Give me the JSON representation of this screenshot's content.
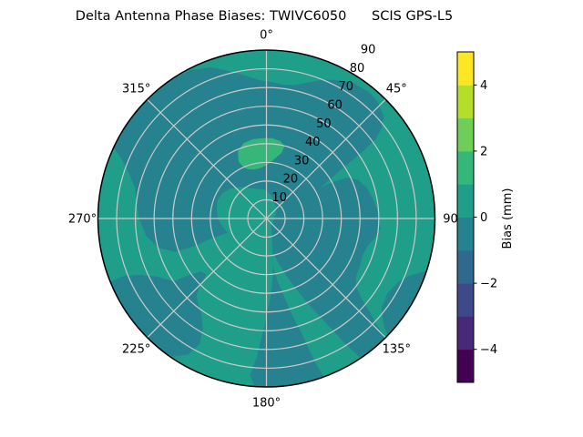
{
  "title": "Delta Antenna Phase Biases: TWIVC6050      SCIS GPS-L5",
  "chart_data": {
    "type": "polar_contourf",
    "field_units": "mm",
    "radial_axis": {
      "label_values": [
        "10",
        "20",
        "30",
        "40",
        "50",
        "60",
        "70",
        "80",
        "90"
      ],
      "max": 90,
      "label_angle_deg": 31
    },
    "theta_labels": [
      {
        "text": "0°",
        "az": 0
      },
      {
        "text": "45°",
        "az": 45
      },
      {
        "text": "90",
        "az": 90
      },
      {
        "text": "135°",
        "az": 135
      },
      {
        "text": "180°",
        "az": 180
      },
      {
        "text": "225°",
        "az": 225
      },
      {
        "text": "270°",
        "az": 270
      },
      {
        "text": "315°",
        "az": 315
      }
    ],
    "grid_color": "#cbcbcb",
    "outline_color": "#000000",
    "field_color": "#1f9e89",
    "field_bias_band": "0 to 1 mm",
    "regions": [
      {
        "name": "northwest-north-low-band",
        "bias_band": "-1 to 0 mm",
        "color": "#26828e",
        "points": [
          [
            250,
            20
          ],
          [
            250,
            32
          ],
          [
            249,
            42
          ],
          [
            250,
            52
          ],
          [
            255,
            60
          ],
          [
            262,
            65
          ],
          [
            270,
            68
          ],
          [
            277,
            70
          ],
          [
            283,
            72
          ],
          [
            288,
            77
          ],
          [
            292,
            83
          ],
          [
            295,
            90
          ],
          [
            305,
            90
          ],
          [
            315,
            90
          ],
          [
            325,
            90
          ],
          [
            333,
            89
          ],
          [
            340,
            86
          ],
          [
            346,
            81
          ],
          [
            352,
            77
          ],
          [
            357,
            74
          ],
          [
            2,
            73
          ],
          [
            7,
            72
          ],
          [
            12,
            73
          ],
          [
            17,
            76
          ],
          [
            22,
            80
          ],
          [
            27,
            83
          ],
          [
            33,
            86
          ],
          [
            39,
            87
          ],
          [
            44,
            86
          ],
          [
            49,
            83
          ],
          [
            52,
            78
          ],
          [
            54,
            72
          ],
          [
            55,
            64
          ],
          [
            56,
            54
          ],
          [
            57,
            46
          ],
          [
            59,
            38
          ],
          [
            61,
            30
          ],
          [
            62,
            22
          ],
          [
            64,
            14
          ],
          [
            66,
            8
          ],
          [
            60,
            4
          ],
          [
            40,
            6
          ],
          [
            20,
            8
          ],
          [
            0,
            10
          ],
          [
            340,
            10
          ],
          [
            320,
            10
          ],
          [
            300,
            12
          ],
          [
            280,
            14
          ],
          [
            265,
            16
          ]
        ]
      },
      {
        "name": "center-right-south-low-band",
        "bias_band": "-1 to 0 mm",
        "color": "#26828e",
        "points": [
          [
            64,
            6
          ],
          [
            62,
            14
          ],
          [
            60,
            22
          ],
          [
            60,
            30
          ],
          [
            61,
            40
          ],
          [
            63,
            48
          ],
          [
            67,
            53
          ],
          [
            73,
            56
          ],
          [
            80,
            58
          ],
          [
            88,
            60
          ],
          [
            95,
            61
          ],
          [
            100,
            59
          ],
          [
            105,
            56
          ],
          [
            111,
            55
          ],
          [
            117,
            56
          ],
          [
            123,
            57
          ],
          [
            127,
            60
          ],
          [
            130,
            66
          ],
          [
            132,
            74
          ],
          [
            134,
            82
          ],
          [
            135,
            90
          ],
          [
            145,
            90
          ],
          [
            155,
            90
          ],
          [
            165,
            90
          ],
          [
            175,
            90
          ],
          [
            184,
            90
          ],
          [
            186,
            84
          ],
          [
            184,
            74
          ],
          [
            182,
            62
          ],
          [
            180,
            52
          ],
          [
            177,
            42
          ],
          [
            174,
            32
          ],
          [
            172,
            24
          ],
          [
            169,
            16
          ],
          [
            163,
            10
          ],
          [
            154,
            6
          ],
          [
            142,
            4
          ],
          [
            128,
            3
          ],
          [
            112,
            3
          ],
          [
            96,
            3
          ],
          [
            80,
            4
          ]
        ]
      },
      {
        "name": "southwest-rim-low-blob",
        "bias_band": "-1 to 0 mm",
        "color": "#26828e",
        "points": [
          [
            218,
            90
          ],
          [
            228,
            90
          ],
          [
            238,
            90
          ],
          [
            248,
            90
          ],
          [
            248,
            82
          ],
          [
            246,
            74
          ],
          [
            242,
            66
          ],
          [
            236,
            60
          ],
          [
            234,
            52
          ],
          [
            231,
            45
          ],
          [
            227,
            44
          ],
          [
            225,
            50
          ],
          [
            222,
            56
          ],
          [
            219,
            58
          ],
          [
            214,
            62
          ],
          [
            210,
            68
          ],
          [
            208,
            76
          ],
          [
            210,
            84
          ],
          [
            214,
            89
          ]
        ]
      },
      {
        "name": "southeast-rim-low-wedge",
        "bias_band": "-1 to 0 mm",
        "color": "#26828e",
        "points": [
          [
            108,
            90
          ],
          [
            112,
            82
          ],
          [
            116,
            78
          ],
          [
            122,
            76
          ],
          [
            128,
            78
          ],
          [
            132,
            84
          ],
          [
            134,
            90
          ],
          [
            126,
            90
          ],
          [
            117,
            90
          ]
        ]
      },
      {
        "name": "center-mid-island",
        "bias_band": "0 to 1 mm",
        "color": "#1f9e89",
        "points": [
          [
            250,
            22
          ],
          [
            260,
            24
          ],
          [
            270,
            26
          ],
          [
            280,
            27
          ],
          [
            290,
            28
          ],
          [
            300,
            27
          ],
          [
            310,
            25
          ],
          [
            320,
            22
          ],
          [
            330,
            19
          ],
          [
            340,
            17
          ],
          [
            350,
            16
          ],
          [
            0,
            15
          ],
          [
            10,
            13
          ],
          [
            20,
            11
          ],
          [
            30,
            9
          ],
          [
            40,
            8
          ],
          [
            50,
            7
          ],
          [
            60,
            6
          ],
          [
            70,
            5
          ],
          [
            90,
            4
          ],
          [
            110,
            4
          ],
          [
            130,
            4
          ],
          [
            150,
            5
          ],
          [
            170,
            5
          ],
          [
            185,
            6
          ],
          [
            200,
            8
          ],
          [
            210,
            10
          ],
          [
            220,
            12
          ],
          [
            230,
            15
          ],
          [
            240,
            18
          ]
        ]
      },
      {
        "name": "south-mid-channel",
        "bias_band": "0 to 1 mm",
        "color": "#1f9e89",
        "points": [
          [
            146,
            90
          ],
          [
            148,
            78
          ],
          [
            150,
            66
          ],
          [
            153,
            54
          ],
          [
            156,
            44
          ],
          [
            160,
            34
          ],
          [
            164,
            26
          ],
          [
            169,
            19
          ],
          [
            173,
            24
          ],
          [
            170,
            34
          ],
          [
            167,
            44
          ],
          [
            165,
            54
          ],
          [
            163,
            64
          ],
          [
            162,
            74
          ],
          [
            161,
            84
          ],
          [
            160,
            90
          ],
          [
            155,
            90
          ],
          [
            150,
            90
          ]
        ]
      },
      {
        "name": "north-high-patch",
        "bias_band": "1 to 2 mm",
        "color": "#35b779",
        "points": [
          [
            334,
            34
          ],
          [
            336,
            30
          ],
          [
            340,
            28
          ],
          [
            346,
            27
          ],
          [
            352,
            27
          ],
          [
            358,
            28
          ],
          [
            4,
            30
          ],
          [
            9,
            33
          ],
          [
            13,
            36
          ],
          [
            14,
            40
          ],
          [
            10,
            42
          ],
          [
            4,
            43
          ],
          [
            357,
            43
          ],
          [
            350,
            43
          ],
          [
            343,
            42
          ],
          [
            337,
            39
          ]
        ]
      }
    ],
    "colorbar": {
      "label": "Bias (mm)",
      "min": -5,
      "max": 5,
      "tick_labels": [
        "4",
        "2",
        "0",
        "−2",
        "−4"
      ],
      "tick_values": [
        4,
        2,
        0,
        -2,
        -4
      ],
      "band_colors_bottom_to_top": [
        "#440154",
        "#482878",
        "#3e4989",
        "#31688e",
        "#26828e",
        "#1f9e89",
        "#35b779",
        "#6ece58",
        "#b5de2b",
        "#fde725"
      ]
    }
  }
}
